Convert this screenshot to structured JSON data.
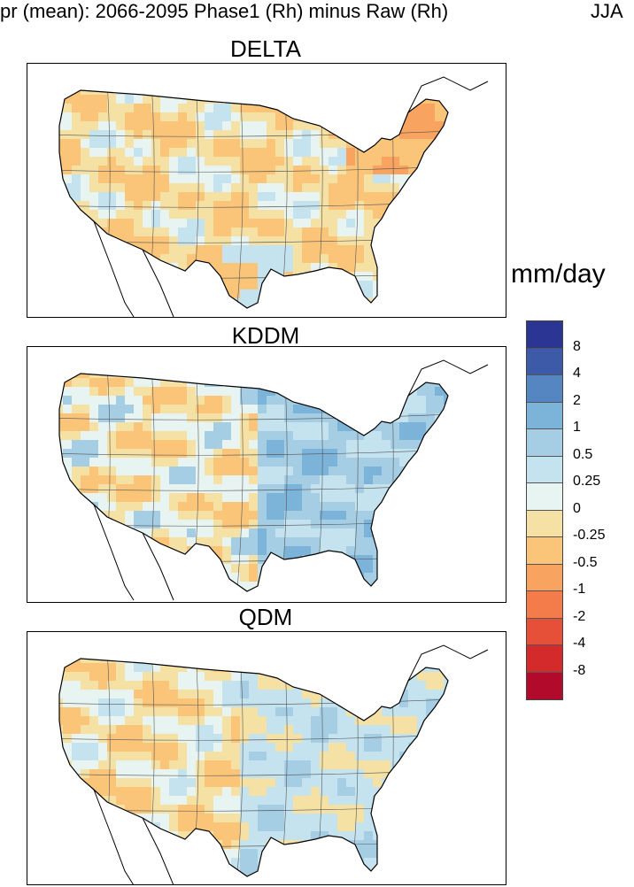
{
  "title": {
    "main": "pr (mean): 2066-2095 Phase1 (Rh) minus Raw (Rh)",
    "season": "JJA"
  },
  "panels": [
    {
      "name": "DELTA",
      "scheme": "warm"
    },
    {
      "name": "KDDM",
      "scheme": "cool"
    },
    {
      "name": "QDM",
      "scheme": "mixed"
    }
  ],
  "units": "mm/day",
  "colorbar": {
    "colors": [
      "#2a3594",
      "#3c5aa8",
      "#5586c2",
      "#7bb3d9",
      "#a5cde4",
      "#c4e3ef",
      "#e8f4f1",
      "#f5e1a4",
      "#fac579",
      "#f8a35f",
      "#f47b4a",
      "#e64f38",
      "#d42a2b",
      "#b20a2a"
    ],
    "labels": [
      "8",
      "4",
      "2",
      "1",
      "0.5",
      "0.25",
      "0",
      "-0.25",
      "-0.5",
      "-1",
      "-2",
      "-4",
      "-8"
    ]
  }
}
